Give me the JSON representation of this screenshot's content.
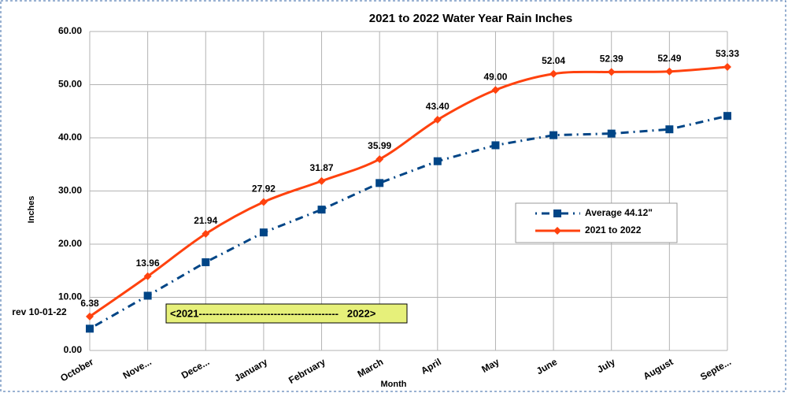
{
  "chart_data": {
    "type": "line",
    "title": "2021 to 2022 Water Year Rain Inches",
    "x_label": "Month",
    "y_label": "Inches",
    "categories": [
      "October",
      "Nove...",
      "Dece...",
      "January",
      "February",
      "March",
      "April",
      "May",
      "June",
      "July",
      "August",
      "Septe..."
    ],
    "series": [
      {
        "name": "Average 44.12\"",
        "color": "#004586",
        "values": [
          4.1,
          10.3,
          16.6,
          22.2,
          26.5,
          31.5,
          35.6,
          38.6,
          40.5,
          40.8,
          41.6,
          44.12
        ]
      },
      {
        "name": "2021 to 2022",
        "color": "#ff420e",
        "values": [
          6.38,
          13.96,
          21.94,
          27.92,
          31.87,
          35.99,
          43.4,
          49.0,
          52.04,
          52.39,
          52.49,
          53.33
        ],
        "value_labels": [
          "6.38",
          "13.96",
          "21.94",
          "27.92",
          "31.87",
          "35.99",
          "43.40",
          "49.00",
          "52.04",
          "52.39",
          "52.49",
          "53.33"
        ]
      }
    ],
    "ylim": [
      0,
      60
    ],
    "yticks": [
      {
        "value": 0,
        "label": "0.00"
      },
      {
        "value": 10,
        "label": "10.00"
      },
      {
        "value": 20,
        "label": "20.00"
      },
      {
        "value": 30,
        "label": "30.00"
      },
      {
        "value": 40,
        "label": "40.00"
      },
      {
        "value": 50,
        "label": "50.00"
      },
      {
        "value": 60,
        "label": "60.00"
      }
    ],
    "grid": true,
    "annotations": [
      "rev 10-01-22",
      "<2021-----------------------------------------   2022>"
    ]
  }
}
